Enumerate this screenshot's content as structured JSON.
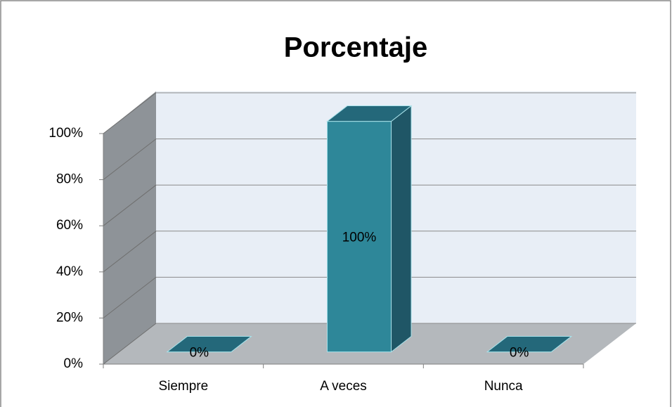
{
  "chart_data": {
    "type": "bar3d",
    "title": "Porcentaje",
    "categories": [
      "Siempre",
      "A veces",
      "Nunca"
    ],
    "values": [
      0,
      100,
      0
    ],
    "value_labels": [
      "0%",
      "100%",
      "0%"
    ],
    "color": "#2e8799",
    "ylim": [
      0,
      100
    ],
    "yticks": [
      {
        "value": 0,
        "label": "0%"
      },
      {
        "value": 20,
        "label": "20%"
      },
      {
        "value": 40,
        "label": "40%"
      },
      {
        "value": 60,
        "label": "60%"
      },
      {
        "value": 80,
        "label": "80%"
      },
      {
        "value": 100,
        "label": "100%"
      }
    ],
    "grid": true
  }
}
